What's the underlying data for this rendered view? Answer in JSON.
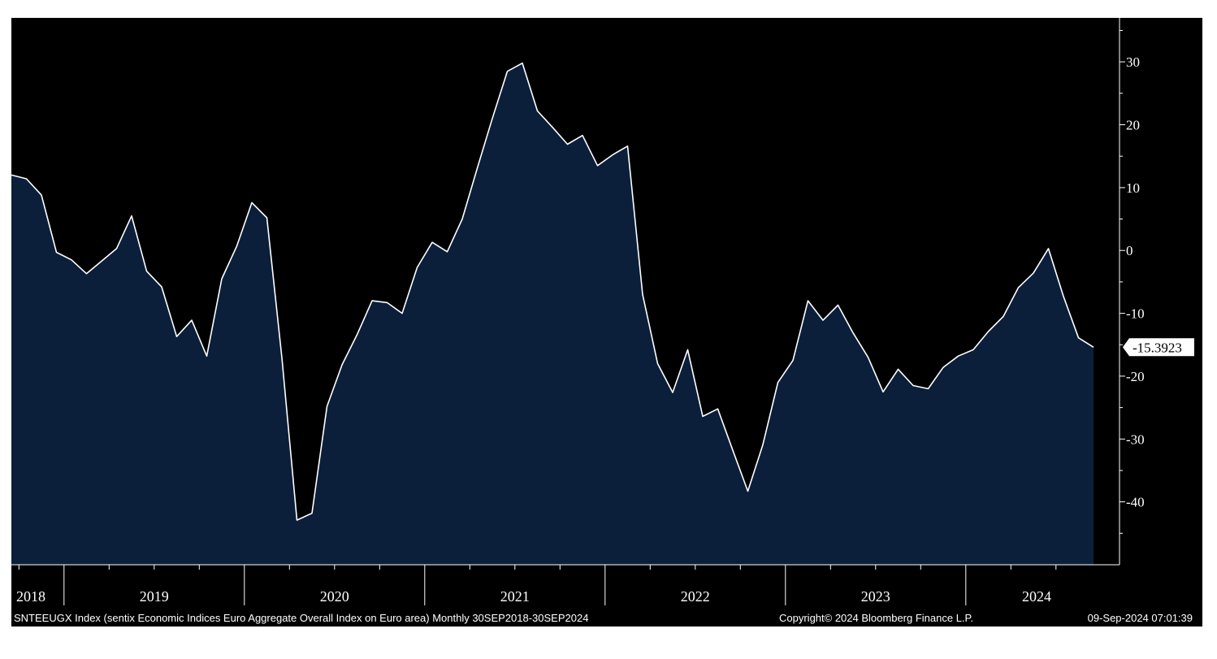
{
  "footer": {
    "description": "SNTEEUGX Index (sentix Economic Indices Euro Aggregate  Overall Index on Euro area)  Monthly 30SEP2018-30SEP2024",
    "copyright": "Copyright© 2024 Bloomberg Finance L.P.",
    "timestamp": "09-Sep-2024 07:01:39"
  },
  "colors": {
    "background": "#000000",
    "area_fill": "#0b1f3b",
    "line": "#ffffff",
    "axis": "#ffffff",
    "label_box": "#ffffff",
    "label_text": "#000000"
  },
  "last_value_label": "-15.3923",
  "chart_data": {
    "type": "area",
    "title": "",
    "xlabel": "",
    "ylabel": "",
    "frequency": "Monthly",
    "ylim": [
      -50,
      37
    ],
    "yticks": [
      30,
      20,
      10,
      0,
      -10,
      -20,
      -30,
      -40
    ],
    "ytick_labels": [
      "30",
      "20",
      "10",
      "0",
      "-10",
      "-20",
      "-30",
      "-40"
    ],
    "year_labels": [
      "2018",
      "2019",
      "2020",
      "2021",
      "2022",
      "2023",
      "2024"
    ],
    "grid": false,
    "series": [
      {
        "x": [
          "2018-09",
          "2018-10",
          "2018-11",
          "2018-12",
          "2019-01",
          "2019-02",
          "2019-03",
          "2019-04",
          "2019-05",
          "2019-06",
          "2019-07",
          "2019-08",
          "2019-09",
          "2019-10",
          "2019-11",
          "2019-12",
          "2020-01",
          "2020-02",
          "2020-03",
          "2020-04",
          "2020-05",
          "2020-06",
          "2020-07",
          "2020-08",
          "2020-09",
          "2020-10",
          "2020-11",
          "2020-12",
          "2021-01",
          "2021-02",
          "2021-03",
          "2021-04",
          "2021-05",
          "2021-06",
          "2021-07",
          "2021-08",
          "2021-09",
          "2021-10",
          "2021-11",
          "2021-12",
          "2022-01",
          "2022-02",
          "2022-03",
          "2022-04",
          "2022-05",
          "2022-06",
          "2022-07",
          "2022-08",
          "2022-09",
          "2022-10",
          "2022-11",
          "2022-12",
          "2023-01",
          "2023-02",
          "2023-03",
          "2023-04",
          "2023-05",
          "2023-06",
          "2023-07",
          "2023-08",
          "2023-09",
          "2023-10",
          "2023-11",
          "2023-12",
          "2024-01",
          "2024-02",
          "2024-03",
          "2024-04",
          "2024-05",
          "2024-06",
          "2024-07",
          "2024-08",
          "2024-09"
        ],
        "values": [
          12.0,
          11.4,
          8.8,
          -0.3,
          -1.5,
          -3.7,
          -1.7,
          0.3,
          5.5,
          -3.3,
          -5.8,
          -13.7,
          -11.1,
          -16.8,
          -4.5,
          0.7,
          7.6,
          5.2,
          -17.1,
          -42.9,
          -41.8,
          -24.8,
          -18.2,
          -13.4,
          -8.0,
          -8.3,
          -10.0,
          -2.7,
          1.3,
          -0.2,
          5.0,
          13.1,
          21.0,
          28.5,
          29.8,
          22.2,
          19.6,
          16.9,
          18.3,
          13.5,
          15.2,
          16.6,
          -7.0,
          -18.0,
          -22.6,
          -15.8,
          -26.4,
          -25.2,
          -31.8,
          -38.3,
          -30.9,
          -21.0,
          -17.5,
          -8.0,
          -11.1,
          -8.7,
          -13.1,
          -17.0,
          -22.5,
          -18.9,
          -21.5,
          -22.0,
          -18.6,
          -16.8,
          -15.8,
          -12.9,
          -10.5,
          -5.9,
          -3.6,
          0.3,
          -7.3,
          -13.9,
          -15.4
        ]
      }
    ]
  }
}
